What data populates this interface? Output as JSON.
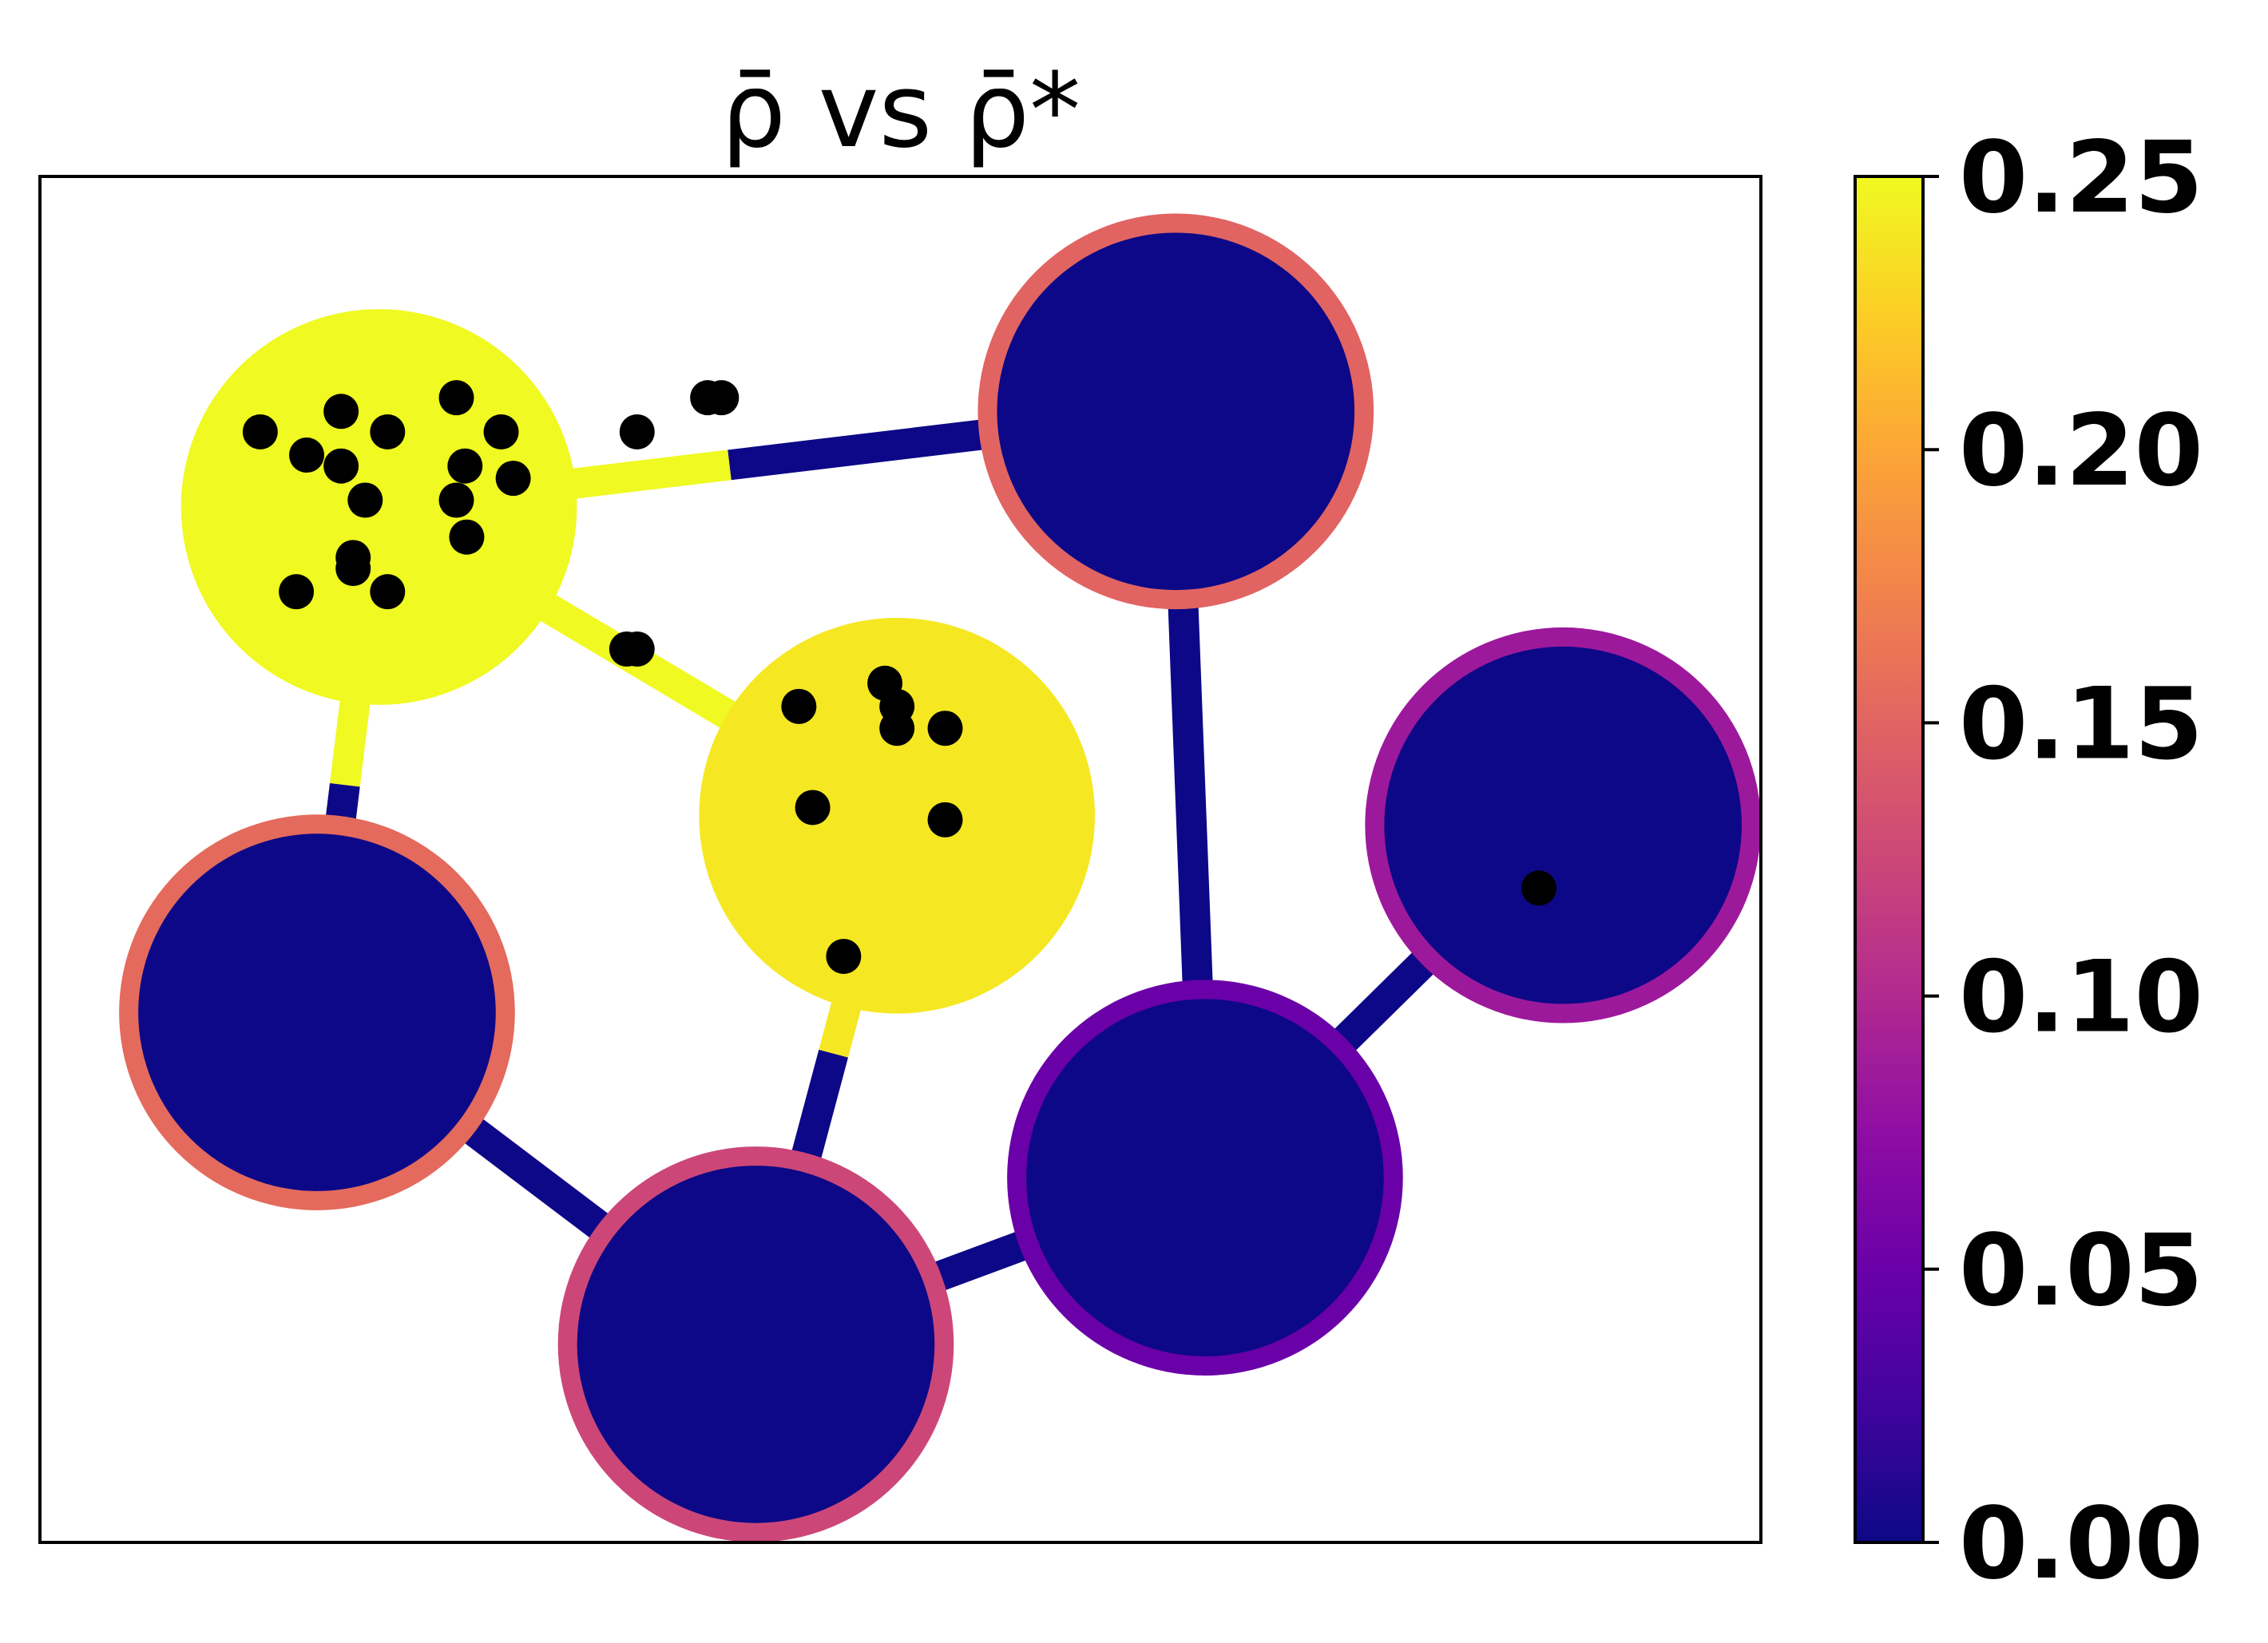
{
  "chart_data": {
    "type": "heatmap",
    "title": "ρ̄ vs ρ̄*",
    "xlabel": "",
    "ylabel": "",
    "colormap": "plasma",
    "grid": false,
    "colorbar": {
      "range": [
        0.0,
        0.25
      ],
      "ticks": [
        0.0,
        0.05,
        0.1,
        0.15,
        0.2,
        0.25
      ],
      "tick_labels": [
        "0.00",
        "0.05",
        "0.10",
        "0.15",
        "0.20",
        "0.25"
      ]
    },
    "colors": {
      "core": "#0d0887",
      "high": "#f0f921",
      "ring_red": "#d5536f",
      "ring_magenta": "#b93f8f",
      "ring_purple": "#7a04a8",
      "ring_violet": "#5c01a6",
      "marker": "#000000"
    },
    "chambers": [
      {
        "id": "A",
        "value": 0.25,
        "ring_value": 0.25,
        "cx": 0.197,
        "cy": 0.242,
        "r": 0.115
      },
      {
        "id": "B",
        "value": 0.24,
        "ring_value": 0.24,
        "cx": 0.498,
        "cy": 0.468,
        "r": 0.115
      },
      {
        "id": "C",
        "value": 0.0,
        "ring_value": 0.15,
        "cx": 0.66,
        "cy": 0.172,
        "r": 0.115
      },
      {
        "id": "D",
        "value": 0.0,
        "ring_value": 0.085,
        "cx": 0.885,
        "cy": 0.475,
        "r": 0.115
      },
      {
        "id": "E",
        "value": 0.0,
        "ring_value": 0.05,
        "cx": 0.677,
        "cy": 0.733,
        "r": 0.115
      },
      {
        "id": "F",
        "value": 0.0,
        "ring_value": 0.125,
        "cx": 0.416,
        "cy": 0.855,
        "r": 0.115
      },
      {
        "id": "G",
        "value": 0.0,
        "ring_value": 0.155,
        "cx": 0.161,
        "cy": 0.612,
        "r": 0.115
      }
    ],
    "channels": [
      {
        "from": "A",
        "to": "C",
        "value_from": 0.25,
        "value_to": 0.0,
        "split": 0.44
      },
      {
        "from": "A",
        "to": "B",
        "value_from": 0.25,
        "value_to": 0.24,
        "split": 1.0
      },
      {
        "from": "A",
        "to": "G",
        "value_from": 0.25,
        "value_to": 0.0,
        "split": 0.55
      },
      {
        "from": "C",
        "to": "E",
        "value_from": 0.0,
        "value_to": 0.0,
        "split": 1.0
      },
      {
        "from": "B",
        "to": "F",
        "value_from": 0.24,
        "value_to": 0.0,
        "split": 0.45
      },
      {
        "from": "G",
        "to": "F",
        "value_from": 0.0,
        "value_to": 0.0,
        "split": 1.0
      },
      {
        "from": "F",
        "to": "E",
        "value_from": 0.0,
        "value_to": 0.0,
        "split": 1.0
      },
      {
        "from": "E",
        "to": "D",
        "value_from": 0.0,
        "value_to": 0.0,
        "split": 1.0
      }
    ],
    "points": [
      [
        0.128,
        0.187
      ],
      [
        0.175,
        0.172
      ],
      [
        0.202,
        0.187
      ],
      [
        0.242,
        0.162
      ],
      [
        0.268,
        0.187
      ],
      [
        0.155,
        0.204
      ],
      [
        0.175,
        0.212
      ],
      [
        0.189,
        0.237
      ],
      [
        0.247,
        0.212
      ],
      [
        0.275,
        0.221
      ],
      [
        0.242,
        0.237
      ],
      [
        0.248,
        0.264
      ],
      [
        0.182,
        0.279
      ],
      [
        0.182,
        0.287
      ],
      [
        0.149,
        0.304
      ],
      [
        0.202,
        0.304
      ],
      [
        0.347,
        0.187
      ],
      [
        0.388,
        0.162
      ],
      [
        0.396,
        0.162
      ],
      [
        0.341,
        0.346
      ],
      [
        0.347,
        0.346
      ],
      [
        0.441,
        0.388
      ],
      [
        0.491,
        0.371
      ],
      [
        0.498,
        0.388
      ],
      [
        0.498,
        0.404
      ],
      [
        0.526,
        0.404
      ],
      [
        0.449,
        0.462
      ],
      [
        0.526,
        0.471
      ],
      [
        0.467,
        0.571
      ],
      [
        0.871,
        0.521
      ]
    ]
  }
}
